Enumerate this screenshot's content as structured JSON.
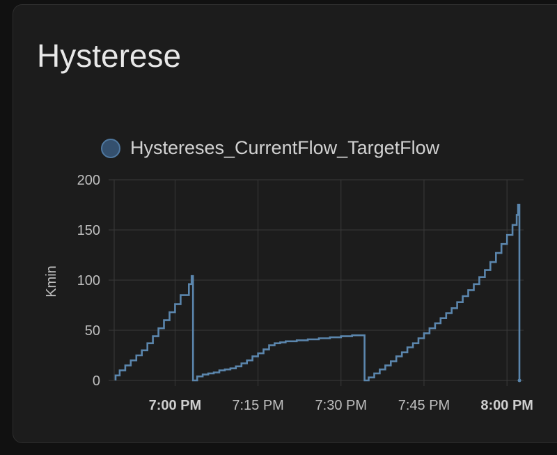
{
  "card": {
    "title": "Hysterese"
  },
  "colors": {
    "background": "#111111",
    "card": "#1c1c1c",
    "series": "#5b86ad",
    "grid": "#3a3a3a"
  },
  "chart_data": {
    "type": "line",
    "step": true,
    "title": "",
    "xlabel": "",
    "ylabel": "Kmin",
    "xlim": [
      "6:49 PM",
      "8:03 PM"
    ],
    "ylim": [
      0,
      200
    ],
    "y_ticks": [
      "0",
      "50",
      "100",
      "150",
      "200"
    ],
    "x_ticks": [
      {
        "label": "7:00 PM",
        "bold": true
      },
      {
        "label": "7:15 PM",
        "bold": false
      },
      {
        "label": "7:30 PM",
        "bold": false
      },
      {
        "label": "7:45 PM",
        "bold": false
      },
      {
        "label": "8:00 PM",
        "bold": true
      }
    ],
    "grid": true,
    "legend": "top",
    "series": [
      {
        "name": "Hystereses_CurrentFlow_TargetFlow",
        "color": "#5b86ad",
        "points": [
          [
            "6:49:15 PM",
            0
          ],
          [
            "6:49:15 PM",
            5
          ],
          [
            "6:50 PM",
            10
          ],
          [
            "6:51 PM",
            15
          ],
          [
            "6:52 PM",
            20
          ],
          [
            "6:53 PM",
            25
          ],
          [
            "6:54 PM",
            30
          ],
          [
            "6:55 PM",
            37
          ],
          [
            "6:56 PM",
            44
          ],
          [
            "6:57 PM",
            52
          ],
          [
            "6:58 PM",
            60
          ],
          [
            "6:59 PM",
            68
          ],
          [
            "7:00 PM",
            76
          ],
          [
            "7:01 PM",
            85
          ],
          [
            "7:02:30 PM",
            96
          ],
          [
            "7:03 PM",
            104
          ],
          [
            "7:03:15 PM",
            0
          ],
          [
            "7:04 PM",
            4
          ],
          [
            "7:05 PM",
            6
          ],
          [
            "7:06 PM",
            7
          ],
          [
            "7:07 PM",
            8
          ],
          [
            "7:08 PM",
            10
          ],
          [
            "7:09 PM",
            11
          ],
          [
            "7:10 PM",
            12
          ],
          [
            "7:11 PM",
            14
          ],
          [
            "7:12 PM",
            17
          ],
          [
            "7:13 PM",
            20
          ],
          [
            "7:14 PM",
            24
          ],
          [
            "7:15 PM",
            27
          ],
          [
            "7:16 PM",
            31
          ],
          [
            "7:17 PM",
            35
          ],
          [
            "7:18 PM",
            37
          ],
          [
            "7:19 PM",
            38
          ],
          [
            "7:20 PM",
            39
          ],
          [
            "7:21 PM",
            39
          ],
          [
            "7:22 PM",
            40
          ],
          [
            "7:23 PM",
            40
          ],
          [
            "7:24 PM",
            41
          ],
          [
            "7:25 PM",
            41
          ],
          [
            "7:26 PM",
            42
          ],
          [
            "7:27 PM",
            42
          ],
          [
            "7:28 PM",
            43
          ],
          [
            "7:29 PM",
            43
          ],
          [
            "7:30 PM",
            44
          ],
          [
            "7:31 PM",
            44
          ],
          [
            "7:32 PM",
            45
          ],
          [
            "7:33 PM",
            45
          ],
          [
            "7:34 PM",
            45
          ],
          [
            "7:34:15 PM",
            0
          ],
          [
            "7:35 PM",
            0
          ],
          [
            "7:35 PM",
            3
          ],
          [
            "7:36 PM",
            7
          ],
          [
            "7:37 PM",
            11
          ],
          [
            "7:38 PM",
            15
          ],
          [
            "7:39 PM",
            19
          ],
          [
            "7:40 PM",
            24
          ],
          [
            "7:41 PM",
            28
          ],
          [
            "7:42 PM",
            33
          ],
          [
            "7:43 PM",
            37
          ],
          [
            "7:44 PM",
            42
          ],
          [
            "7:45 PM",
            47
          ],
          [
            "7:46 PM",
            52
          ],
          [
            "7:47 PM",
            57
          ],
          [
            "7:48 PM",
            62
          ],
          [
            "7:49 PM",
            67
          ],
          [
            "7:50 PM",
            72
          ],
          [
            "7:51 PM",
            78
          ],
          [
            "7:52 PM",
            84
          ],
          [
            "7:53 PM",
            90
          ],
          [
            "7:54 PM",
            96
          ],
          [
            "7:55 PM",
            103
          ],
          [
            "7:56 PM",
            110
          ],
          [
            "7:57 PM",
            118
          ],
          [
            "7:58 PM",
            127
          ],
          [
            "7:59 PM",
            136
          ],
          [
            "8:00 PM",
            145
          ],
          [
            "8:01 PM",
            155
          ],
          [
            "8:01:45 PM",
            165
          ],
          [
            "8:02 PM",
            175
          ],
          [
            "8:02:15 PM",
            0
          ]
        ]
      }
    ]
  }
}
